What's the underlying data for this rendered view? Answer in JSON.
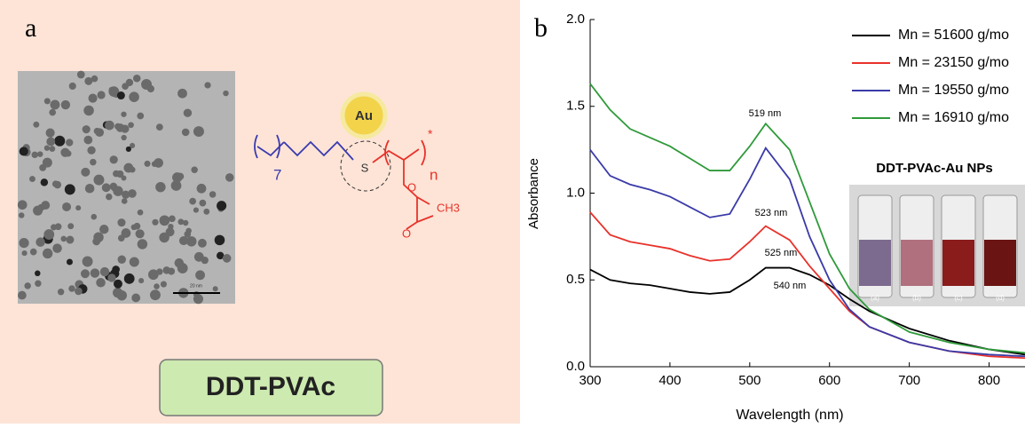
{
  "panel_a": {
    "label": "a",
    "gold": "Au",
    "sulfur": "S",
    "repeat_inner": "7",
    "repeat_outer": "n",
    "end_group": "*",
    "ester_oxygen": "O",
    "carbonyl_oxygen": "O",
    "methyl": "CH3",
    "scale_bar": "20 nm",
    "name": "DDT-PVAc"
  },
  "chart_data": {
    "type": "line",
    "panel_label": "b",
    "x_label": "Wavelength (nm)",
    "y_label": "Absorbance",
    "x": [
      300,
      325,
      350,
      375,
      400,
      425,
      450,
      475,
      500,
      520,
      550,
      575,
      600,
      625,
      650,
      700,
      750,
      800,
      845
    ],
    "series": [
      {
        "name": "Mn = 51600 g/mo",
        "color": "#000000",
        "values": [
          0.56,
          0.5,
          0.48,
          0.47,
          0.45,
          0.43,
          0.42,
          0.43,
          0.5,
          0.57,
          0.57,
          0.53,
          0.47,
          0.39,
          0.32,
          0.22,
          0.15,
          0.1,
          0.07
        ]
      },
      {
        "name": "Mn = 23150 g/mo",
        "color": "#e8322b",
        "values": [
          0.89,
          0.76,
          0.72,
          0.7,
          0.68,
          0.64,
          0.61,
          0.62,
          0.72,
          0.81,
          0.73,
          0.58,
          0.45,
          0.32,
          0.23,
          0.14,
          0.09,
          0.06,
          0.05
        ]
      },
      {
        "name": "Mn = 19550 g/mo",
        "color": "#3a3aa8",
        "values": [
          1.25,
          1.1,
          1.05,
          1.02,
          0.98,
          0.92,
          0.86,
          0.88,
          1.08,
          1.26,
          1.08,
          0.75,
          0.5,
          0.33,
          0.23,
          0.14,
          0.09,
          0.07,
          0.06
        ]
      },
      {
        "name": "Mn = 16910 g/mo",
        "color": "#2f9a3a",
        "values": [
          1.63,
          1.48,
          1.37,
          1.32,
          1.27,
          1.2,
          1.13,
          1.13,
          1.27,
          1.4,
          1.25,
          0.95,
          0.65,
          0.45,
          0.33,
          0.2,
          0.14,
          0.1,
          0.08
        ]
      }
    ],
    "xlim": [
      300,
      845
    ],
    "xticks": [
      300,
      400,
      500,
      600,
      700,
      800
    ],
    "ylim": [
      0,
      2
    ],
    "yticks": [
      {
        "value": 0,
        "label": "0.0"
      },
      0.5,
      {
        "value": 1,
        "label": "1.0"
      },
      1.5,
      {
        "value": 2,
        "label": "2.0"
      }
    ],
    "annotations": [
      "519 nm",
      "523 nm",
      "525 nm",
      "540 nm"
    ],
    "inset": {
      "title": "DDT-PVAc-Au NPs",
      "labels": [
        "(a)",
        "(b)",
        "(c)",
        "(d)"
      ],
      "colors": [
        "#7d6a8f",
        "#b0707e",
        "#8a1c1c",
        "#6a1414"
      ]
    }
  }
}
